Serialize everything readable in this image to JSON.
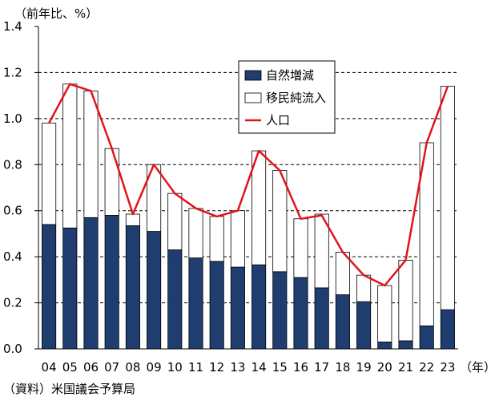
{
  "chart_data": {
    "type": "bar",
    "ylabel": "（前年比、%）",
    "xunit": "（年）",
    "source": "（資料）米国議会予算局",
    "ylim": [
      0,
      1.4
    ],
    "ytick_step": 0.2,
    "grid": "dashed-horizontal",
    "legend_position": "top-right",
    "categories": [
      "04",
      "05",
      "06",
      "07",
      "08",
      "09",
      "10",
      "11",
      "12",
      "13",
      "14",
      "15",
      "16",
      "17",
      "18",
      "19",
      "20",
      "21",
      "22",
      "23"
    ],
    "series": [
      {
        "name": "自然増減",
        "kind": "stacked-bar",
        "color": "#1f3d6e",
        "values": [
          0.54,
          0.525,
          0.57,
          0.58,
          0.535,
          0.51,
          0.43,
          0.395,
          0.38,
          0.355,
          0.365,
          0.335,
          0.31,
          0.265,
          0.235,
          0.205,
          0.03,
          0.035,
          0.1,
          0.17
        ]
      },
      {
        "name": "移民純流入",
        "kind": "stacked-bar",
        "color": "#ffffff",
        "values": [
          0.44,
          0.625,
          0.55,
          0.29,
          0.05,
          0.29,
          0.245,
          0.215,
          0.195,
          0.245,
          0.495,
          0.44,
          0.255,
          0.32,
          0.185,
          0.115,
          0.245,
          0.35,
          0.795,
          0.97
        ]
      },
      {
        "name": "人口",
        "kind": "line",
        "color": "#e2141b",
        "values": [
          0.98,
          1.15,
          1.12,
          0.87,
          0.585,
          0.8,
          0.675,
          0.61,
          0.575,
          0.6,
          0.86,
          0.775,
          0.565,
          0.58,
          0.42,
          0.32,
          0.275,
          0.385,
          0.895,
          1.14
        ]
      }
    ]
  }
}
